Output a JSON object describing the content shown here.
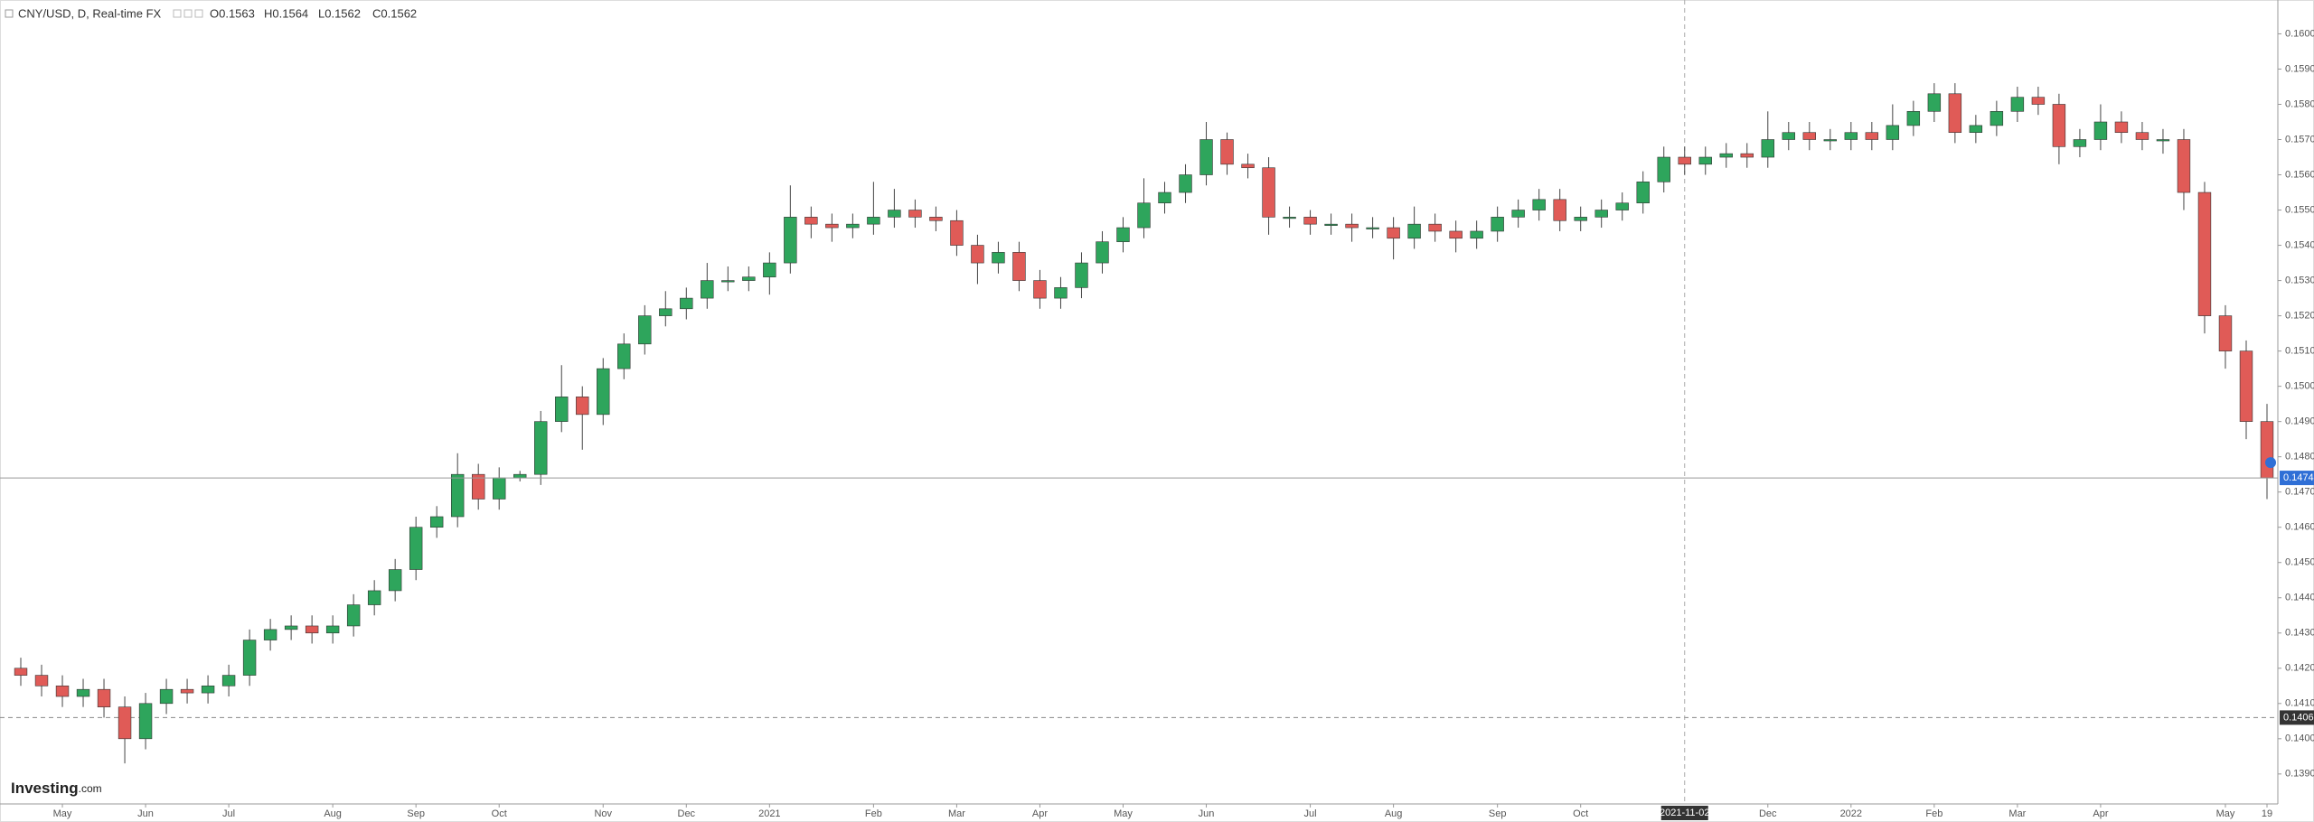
{
  "chart_data": {
    "type": "candlestick",
    "symbol": "CNY/USD, D, Real-time FX",
    "ohlc_header": [
      "O0.1563",
      "H0.1564",
      "L0.1562",
      "C0.1562"
    ],
    "brand": {
      "main": "Investing",
      "suffix": ".com"
    },
    "up_color": "#2ea55c",
    "down_color": "#e05b57",
    "grid": false,
    "categories": [
      null,
      null,
      "May",
      null,
      null,
      null,
      "Jun",
      null,
      null,
      null,
      "Jul",
      null,
      null,
      null,
      null,
      "Aug",
      null,
      null,
      null,
      "Sep",
      null,
      null,
      null,
      "Oct",
      null,
      null,
      null,
      null,
      "Nov",
      null,
      null,
      null,
      "Dec",
      null,
      null,
      null,
      "2021",
      null,
      null,
      null,
      null,
      "Feb",
      null,
      null,
      null,
      "Mar",
      null,
      null,
      null,
      "Apr",
      null,
      null,
      null,
      "May",
      null,
      null,
      null,
      "Jun",
      null,
      null,
      null,
      null,
      "Jul",
      null,
      null,
      null,
      "Aug",
      null,
      null,
      null,
      null,
      "Sep",
      null,
      null,
      null,
      "Oct",
      null,
      null,
      null,
      null,
      "2021-11-02",
      null,
      null,
      null,
      "Dec",
      null,
      null,
      null,
      "2022",
      null,
      null,
      null,
      "Feb",
      null,
      null,
      null,
      "Mar",
      null,
      null,
      null,
      "Apr",
      null,
      null,
      null,
      null,
      null,
      "May",
      null,
      "19"
    ],
    "open": [
      0.142,
      0.1418,
      0.1415,
      0.1412,
      0.1414,
      0.1409,
      0.14,
      0.141,
      0.1414,
      0.1413,
      0.1415,
      0.1418,
      0.1428,
      0.1431,
      0.1432,
      0.143,
      0.1432,
      0.1438,
      0.1442,
      0.1448,
      0.146,
      0.1463,
      0.1475,
      0.1468,
      0.1474,
      0.1475,
      0.149,
      0.1497,
      0.1492,
      0.1505,
      0.1512,
      0.152,
      0.1522,
      0.1525,
      0.153,
      0.153,
      0.1531,
      0.1535,
      0.1548,
      0.1546,
      0.1545,
      0.1546,
      0.1548,
      0.155,
      0.1548,
      0.1547,
      0.154,
      0.1535,
      0.1538,
      0.153,
      0.1525,
      0.1528,
      0.1535,
      0.1541,
      0.1545,
      0.1552,
      0.1555,
      0.156,
      0.157,
      0.1563,
      0.1562,
      0.1548,
      0.1548,
      0.1546,
      0.1546,
      0.1545,
      0.1545,
      0.1542,
      0.1546,
      0.1544,
      0.1542,
      0.1544,
      0.1548,
      0.155,
      0.1553,
      0.1547,
      0.1548,
      0.155,
      0.1552,
      0.1558,
      0.1565,
      0.1563,
      0.1565,
      0.1566,
      0.1565,
      0.157,
      0.1572,
      0.157,
      0.157,
      0.1572,
      0.157,
      0.1574,
      0.1578,
      0.1583,
      0.1572,
      0.1574,
      0.1578,
      0.1582,
      0.158,
      0.1568,
      0.157,
      0.1575,
      0.1572,
      0.157,
      0.157,
      0.1555,
      0.152,
      0.151,
      0.149
    ],
    "high": [
      0.1423,
      0.1421,
      0.1418,
      0.1417,
      0.1417,
      0.1412,
      0.1413,
      0.1417,
      0.1417,
      0.1418,
      0.1421,
      0.1431,
      0.1434,
      0.1435,
      0.1435,
      0.1435,
      0.1441,
      0.1445,
      0.1451,
      0.1463,
      0.1466,
      0.1481,
      0.1478,
      0.1477,
      0.1476,
      0.1493,
      0.1506,
      0.15,
      0.1508,
      0.1515,
      0.1523,
      0.1527,
      0.1528,
      0.1535,
      0.1534,
      0.1534,
      0.1538,
      0.1557,
      0.1551,
      0.1549,
      0.1549,
      0.1558,
      0.1556,
      0.1553,
      0.1551,
      0.155,
      0.1543,
      0.1541,
      0.1541,
      0.1533,
      0.1531,
      0.1538,
      0.1544,
      0.1548,
      0.1559,
      0.1558,
      0.1563,
      0.1575,
      0.1572,
      0.1566,
      0.1565,
      0.1551,
      0.155,
      0.1549,
      0.1549,
      0.1548,
      0.1548,
      0.1551,
      0.1549,
      0.1547,
      0.1547,
      0.1551,
      0.1553,
      0.1556,
      0.1556,
      0.1551,
      0.1553,
      0.1555,
      0.1561,
      0.1568,
      0.1568,
      0.1568,
      0.1569,
      0.1569,
      0.1578,
      0.1575,
      0.1575,
      0.1573,
      0.1575,
      0.1575,
      0.158,
      0.1581,
      0.1586,
      0.1586,
      0.1577,
      0.1581,
      0.1585,
      0.1585,
      0.1583,
      0.1573,
      0.158,
      0.1578,
      0.1575,
      0.1573,
      0.1573,
      0.1558,
      0.1523,
      0.1513,
      0.1495
    ],
    "low": [
      0.1415,
      0.1412,
      0.1409,
      0.1409,
      0.1406,
      0.1393,
      0.1397,
      0.1407,
      0.141,
      0.141,
      0.1412,
      0.1415,
      0.1425,
      0.1428,
      0.1427,
      0.1427,
      0.1429,
      0.1435,
      0.1439,
      0.1445,
      0.1457,
      0.146,
      0.1465,
      0.1465,
      0.1473,
      0.1472,
      0.1487,
      0.1482,
      0.1489,
      0.1502,
      0.1509,
      0.1517,
      0.1519,
      0.1522,
      0.1527,
      0.1527,
      0.1526,
      0.1532,
      0.1542,
      0.1541,
      0.1542,
      0.1543,
      0.1545,
      0.1545,
      0.1544,
      0.1537,
      0.1529,
      0.1532,
      0.1527,
      0.1522,
      0.1522,
      0.1525,
      0.1532,
      0.1538,
      0.1542,
      0.1549,
      0.1552,
      0.1557,
      0.156,
      0.1559,
      0.1543,
      0.1545,
      0.1543,
      0.1543,
      0.1541,
      0.1542,
      0.1536,
      0.1539,
      0.1541,
      0.1538,
      0.1539,
      0.1541,
      0.1545,
      0.1547,
      0.1544,
      0.1544,
      0.1545,
      0.1547,
      0.1549,
      0.1555,
      0.156,
      0.156,
      0.1562,
      0.1562,
      0.1562,
      0.1567,
      0.1567,
      0.1567,
      0.1567,
      0.1567,
      0.1567,
      0.1571,
      0.1575,
      0.1569,
      0.1569,
      0.1571,
      0.1575,
      0.1577,
      0.1563,
      0.1565,
      0.1567,
      0.1569,
      0.1567,
      0.1566,
      0.155,
      0.1515,
      0.1505,
      0.1485,
      0.1468
    ],
    "close": [
      0.1418,
      0.1415,
      0.1412,
      0.1414,
      0.1409,
      0.14,
      0.141,
      0.1414,
      0.1413,
      0.1415,
      0.1418,
      0.1428,
      0.1431,
      0.1432,
      0.143,
      0.1432,
      0.1438,
      0.1442,
      0.1448,
      0.146,
      0.1463,
      0.1475,
      0.1468,
      0.1474,
      0.1475,
      0.149,
      0.1497,
      0.1492,
      0.1505,
      0.1512,
      0.152,
      0.1522,
      0.1525,
      0.153,
      0.153,
      0.1531,
      0.1535,
      0.1548,
      0.1546,
      0.1545,
      0.1546,
      0.1548,
      0.155,
      0.1548,
      0.1547,
      0.154,
      0.1535,
      0.1538,
      0.153,
      0.1525,
      0.1528,
      0.1535,
      0.1541,
      0.1545,
      0.1552,
      0.1555,
      0.156,
      0.157,
      0.1563,
      0.1562,
      0.1548,
      0.1548,
      0.1546,
      0.1546,
      0.1545,
      0.1545,
      0.1542,
      0.1546,
      0.1544,
      0.1542,
      0.1544,
      0.1548,
      0.155,
      0.1553,
      0.1547,
      0.1548,
      0.155,
      0.1552,
      0.1558,
      0.1565,
      0.1563,
      0.1565,
      0.1566,
      0.1565,
      0.157,
      0.1572,
      0.157,
      0.157,
      0.1572,
      0.157,
      0.1574,
      0.1578,
      0.1583,
      0.1572,
      0.1574,
      0.1578,
      0.1582,
      0.158,
      0.1568,
      0.157,
      0.1575,
      0.1572,
      0.157,
      0.157,
      0.1555,
      0.152,
      0.151,
      0.149,
      0.1474
    ],
    "ylim": [
      0.13815,
      0.16096
    ],
    "yticks": [
      {
        "value": 0.139,
        "label": "0.1390"
      },
      {
        "value": 0.14,
        "label": "0.1400"
      },
      {
        "value": 0.141,
        "label": "0.1410"
      },
      {
        "value": 0.142,
        "label": "0.1420"
      },
      {
        "value": 0.143,
        "label": "0.1430"
      },
      {
        "value": 0.144,
        "label": "0.1440"
      },
      {
        "value": 0.145,
        "label": "0.1450"
      },
      {
        "value": 0.146,
        "label": "0.1460"
      },
      {
        "value": 0.147,
        "label": "0.1470"
      },
      {
        "value": 0.148,
        "label": "0.1480"
      },
      {
        "value": 0.149,
        "label": "0.1490"
      },
      {
        "value": 0.15,
        "label": "0.1500"
      },
      {
        "value": 0.151,
        "label": "0.1510"
      },
      {
        "value": 0.152,
        "label": "0.1520"
      },
      {
        "value": 0.153,
        "label": "0.1530"
      },
      {
        "value": 0.154,
        "label": "0.1540"
      },
      {
        "value": 0.155,
        "label": "0.1550"
      },
      {
        "value": 0.156,
        "label": "0.1560"
      },
      {
        "value": 0.157,
        "label": "0.1570"
      },
      {
        "value": 0.158,
        "label": "0.1580"
      },
      {
        "value": 0.159,
        "label": "0.1590"
      },
      {
        "value": 0.16,
        "label": "0.1600"
      }
    ],
    "last_price": {
      "value": 0.1474,
      "label": "0.1474",
      "color": "#2f6fd6"
    },
    "crosshair": {
      "x": "2021-11-02",
      "y": {
        "value": 0.1406,
        "label": "0.1406"
      }
    }
  }
}
